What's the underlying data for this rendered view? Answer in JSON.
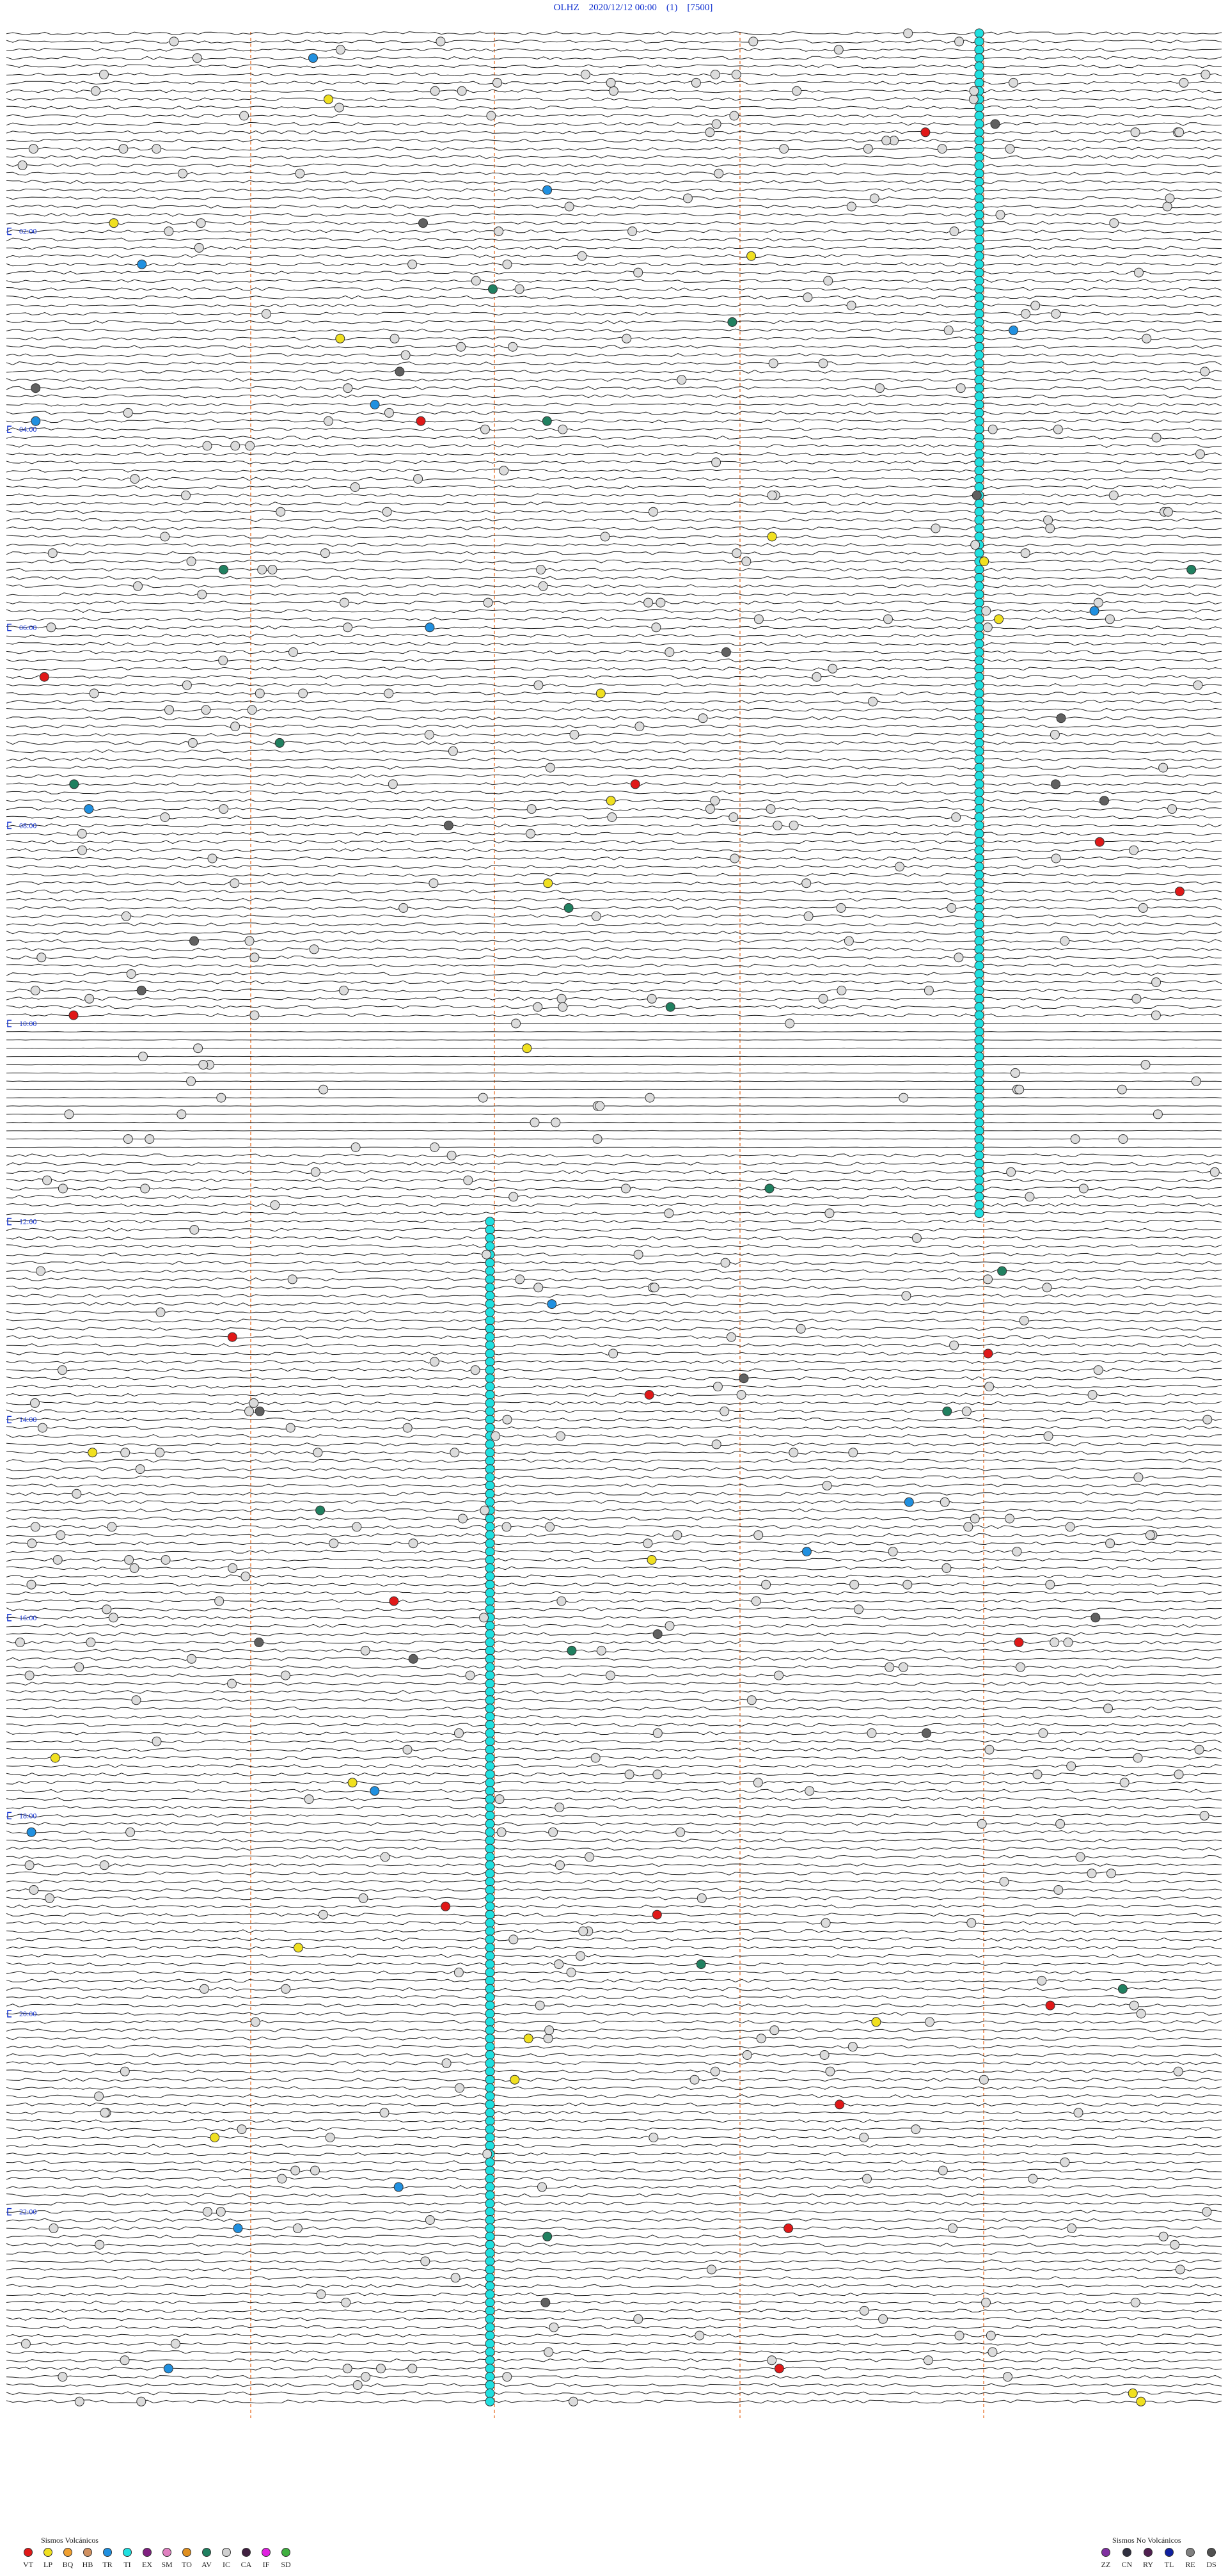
{
  "header": {
    "title": "OLHZ    2020/12/12 00:00    (1)    [7500]"
  },
  "time_labels": [
    "02:00",
    "04:00",
    "06:00",
    "08:00",
    "10:00",
    "12:00",
    "14:00",
    "16:00",
    "18:00",
    "20:00",
    "22:00"
  ],
  "legend_volcanic": {
    "title": "Sismos Volcánicos",
    "items": [
      {
        "code": "VT",
        "color": "#e01818"
      },
      {
        "code": "LP",
        "color": "#f0e020"
      },
      {
        "code": "BQ",
        "color": "#f0a030"
      },
      {
        "code": "HB",
        "color": "#d09060"
      },
      {
        "code": "TR",
        "color": "#2090e0"
      },
      {
        "code": "TI",
        "color": "#20e0e0"
      },
      {
        "code": "EX",
        "color": "#802080"
      },
      {
        "code": "SM",
        "color": "#e080c0"
      },
      {
        "code": "TO",
        "color": "#e09020"
      },
      {
        "code": "AV",
        "color": "#208060"
      },
      {
        "code": "IC",
        "color": "#d0d0d0"
      },
      {
        "code": "CA",
        "color": "#402040"
      },
      {
        "code": "IF",
        "color": "#e020e0"
      },
      {
        "code": "SD",
        "color": "#40b040"
      }
    ]
  },
  "legend_non_volcanic": {
    "title": "Sismos No Volcánicos",
    "items": [
      {
        "code": "ZZ",
        "color": "#8030a0"
      },
      {
        "code": "CN",
        "color": "#303040"
      },
      {
        "code": "RY",
        "color": "#502050"
      },
      {
        "code": "TL",
        "color": "#1020a0"
      },
      {
        "code": "RE",
        "color": "#808080"
      },
      {
        "code": "DS",
        "color": "#505050"
      }
    ]
  }
}
